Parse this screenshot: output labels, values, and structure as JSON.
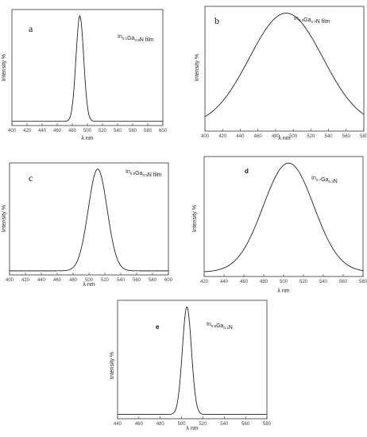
{
  "chart_data": [
    {
      "panel_label": "a",
      "type": "line",
      "annotation": {
        "parts": [
          [
            "In",
            false
          ],
          [
            "0.1",
            true
          ],
          [
            "Ga",
            false
          ],
          [
            "0.9",
            true
          ],
          [
            "N film",
            false
          ]
        ]
      },
      "xlabel": "λ nm",
      "ylabel": "Intensity %",
      "xlim": [
        400,
        600
      ],
      "xticks": [
        400,
        420,
        440,
        460,
        480,
        500,
        520,
        540,
        560,
        580,
        600
      ],
      "series": [
        {
          "peak_x": 490,
          "fwhm": 12,
          "baseline": 0.0,
          "peak_y": 1.0
        }
      ]
    },
    {
      "panel_label": "b",
      "type": "line",
      "annotation": {
        "parts": [
          [
            "In",
            false
          ],
          [
            "0.3",
            true
          ],
          [
            "Ga",
            false
          ],
          [
            "0.7",
            true
          ],
          [
            "N film",
            false
          ]
        ]
      },
      "xlabel": "λ nm",
      "ylabel": "Intensity %",
      "xlim": [
        400,
        580
      ],
      "xticks": [
        400,
        420,
        440,
        460,
        480,
        500,
        520,
        540,
        560,
        580
      ],
      "series": [
        {
          "peak_x": 492,
          "fwhm": 98,
          "baseline": 0.0,
          "peak_y": 1.0
        }
      ]
    },
    {
      "panel_label": "c",
      "type": "line",
      "annotation": {
        "parts": [
          [
            "In",
            false
          ],
          [
            "0.5",
            true
          ],
          [
            "Ga",
            false
          ],
          [
            "0.5",
            true
          ],
          [
            "N film",
            false
          ]
        ]
      },
      "xlabel": "λ nm",
      "ylabel": "Intensity %",
      "xlim": [
        400,
        600
      ],
      "xticks": [
        400,
        420,
        440,
        460,
        480,
        500,
        520,
        540,
        560,
        580,
        600
      ],
      "series": [
        {
          "peak_x": 511,
          "fwhm": 28,
          "baseline": 0.0,
          "peak_y": 1.0
        }
      ]
    },
    {
      "panel_label": "d",
      "type": "line",
      "annotation": {
        "parts": [
          [
            "In",
            false
          ],
          [
            "0.7",
            true
          ],
          [
            "Ga",
            false
          ],
          [
            "0.3",
            true
          ],
          [
            "N",
            false
          ]
        ]
      },
      "xlabel": "λ nm",
      "ylabel": "Intensity %",
      "xlim": [
        420,
        580
      ],
      "xticks": [
        420,
        440,
        460,
        480,
        500,
        520,
        540,
        560,
        580
      ],
      "series": [
        {
          "peak_x": 505,
          "fwhm": 60,
          "baseline": 0.0,
          "peak_y": 1.0
        }
      ]
    },
    {
      "panel_label": "e",
      "type": "line",
      "annotation": {
        "parts": [
          [
            "In",
            false
          ],
          [
            "0.9",
            true
          ],
          [
            "Ga",
            false
          ],
          [
            "0.1",
            true
          ],
          [
            "N",
            false
          ]
        ]
      },
      "xlabel": "λ nm",
      "ylabel": "Intensity %",
      "xlim": [
        440,
        580
      ],
      "xticks": [
        440,
        460,
        480,
        500,
        520,
        540,
        560,
        580
      ],
      "series": [
        {
          "peak_x": 505,
          "fwhm": 10,
          "baseline": 0.0,
          "peak_y": 1.0
        }
      ]
    }
  ]
}
